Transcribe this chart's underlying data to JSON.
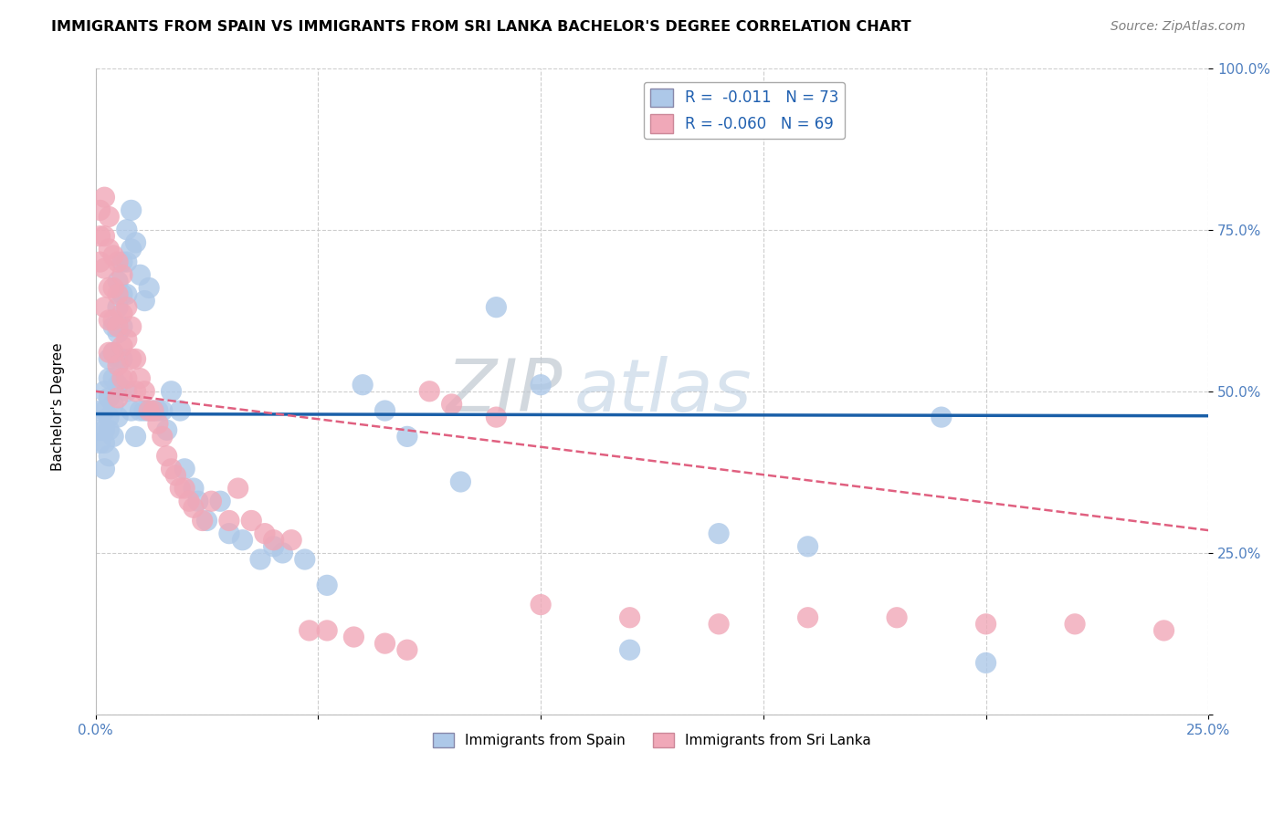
{
  "title": "IMMIGRANTS FROM SPAIN VS IMMIGRANTS FROM SRI LANKA BACHELOR'S DEGREE CORRELATION CHART",
  "source": "Source: ZipAtlas.com",
  "ylabel": "Bachelor's Degree",
  "xlim": [
    0.0,
    0.25
  ],
  "ylim": [
    0.0,
    1.0
  ],
  "x_ticks": [
    0.0,
    0.05,
    0.1,
    0.15,
    0.2,
    0.25
  ],
  "x_tick_labels": [
    "0.0%",
    "",
    "",
    "",
    "",
    "25.0%"
  ],
  "y_ticks": [
    0.0,
    0.25,
    0.5,
    0.75,
    1.0
  ],
  "y_tick_labels": [
    "",
    "25.0%",
    "50.0%",
    "75.0%",
    "100.0%"
  ],
  "spain_R": -0.011,
  "spain_N": 73,
  "srilanka_R": -0.06,
  "srilanka_N": 69,
  "spain_color": "#adc8e8",
  "srilanka_color": "#f0a8b8",
  "spain_line_color": "#1a5fa8",
  "srilanka_line_color": "#e06080",
  "watermark_zip": "ZIP",
  "watermark_atlas": "atlas",
  "spain_x": [
    0.001,
    0.001,
    0.001,
    0.002,
    0.002,
    0.002,
    0.002,
    0.002,
    0.003,
    0.003,
    0.003,
    0.003,
    0.003,
    0.003,
    0.004,
    0.004,
    0.004,
    0.004,
    0.004,
    0.005,
    0.005,
    0.005,
    0.005,
    0.005,
    0.005,
    0.006,
    0.006,
    0.006,
    0.006,
    0.007,
    0.007,
    0.007,
    0.007,
    0.008,
    0.008,
    0.008,
    0.009,
    0.009,
    0.01,
    0.01,
    0.011,
    0.011,
    0.012,
    0.012,
    0.013,
    0.014,
    0.015,
    0.016,
    0.017,
    0.019,
    0.02,
    0.022,
    0.023,
    0.025,
    0.028,
    0.03,
    0.033,
    0.037,
    0.04,
    0.042,
    0.047,
    0.052,
    0.06,
    0.065,
    0.07,
    0.082,
    0.09,
    0.1,
    0.12,
    0.14,
    0.16,
    0.19,
    0.2
  ],
  "spain_y": [
    0.47,
    0.44,
    0.42,
    0.5,
    0.47,
    0.44,
    0.42,
    0.38,
    0.55,
    0.52,
    0.49,
    0.46,
    0.44,
    0.4,
    0.6,
    0.56,
    0.52,
    0.48,
    0.43,
    0.67,
    0.63,
    0.59,
    0.55,
    0.51,
    0.46,
    0.7,
    0.65,
    0.6,
    0.55,
    0.75,
    0.7,
    0.65,
    0.5,
    0.78,
    0.72,
    0.47,
    0.73,
    0.43,
    0.68,
    0.47,
    0.64,
    0.47,
    0.66,
    0.47,
    0.47,
    0.47,
    0.47,
    0.44,
    0.5,
    0.47,
    0.38,
    0.35,
    0.33,
    0.3,
    0.33,
    0.28,
    0.27,
    0.24,
    0.26,
    0.25,
    0.24,
    0.2,
    0.51,
    0.47,
    0.43,
    0.36,
    0.63,
    0.51,
    0.1,
    0.28,
    0.26,
    0.46,
    0.08
  ],
  "srilanka_x": [
    0.001,
    0.001,
    0.001,
    0.002,
    0.002,
    0.002,
    0.002,
    0.003,
    0.003,
    0.003,
    0.003,
    0.003,
    0.004,
    0.004,
    0.004,
    0.004,
    0.005,
    0.005,
    0.005,
    0.005,
    0.005,
    0.006,
    0.006,
    0.006,
    0.006,
    0.007,
    0.007,
    0.007,
    0.008,
    0.008,
    0.009,
    0.009,
    0.01,
    0.011,
    0.012,
    0.013,
    0.014,
    0.015,
    0.016,
    0.017,
    0.018,
    0.019,
    0.02,
    0.021,
    0.022,
    0.024,
    0.026,
    0.03,
    0.032,
    0.035,
    0.038,
    0.04,
    0.044,
    0.048,
    0.052,
    0.058,
    0.065,
    0.07,
    0.075,
    0.08,
    0.09,
    0.1,
    0.12,
    0.14,
    0.16,
    0.18,
    0.2,
    0.22,
    0.24
  ],
  "srilanka_y": [
    0.78,
    0.74,
    0.7,
    0.8,
    0.74,
    0.69,
    0.63,
    0.77,
    0.72,
    0.66,
    0.61,
    0.56,
    0.71,
    0.66,
    0.61,
    0.56,
    0.7,
    0.65,
    0.6,
    0.54,
    0.49,
    0.68,
    0.62,
    0.57,
    0.52,
    0.63,
    0.58,
    0.52,
    0.6,
    0.55,
    0.55,
    0.5,
    0.52,
    0.5,
    0.47,
    0.47,
    0.45,
    0.43,
    0.4,
    0.38,
    0.37,
    0.35,
    0.35,
    0.33,
    0.32,
    0.3,
    0.33,
    0.3,
    0.35,
    0.3,
    0.28,
    0.27,
    0.27,
    0.13,
    0.13,
    0.12,
    0.11,
    0.1,
    0.5,
    0.48,
    0.46,
    0.17,
    0.15,
    0.14,
    0.15,
    0.15,
    0.14,
    0.14,
    0.13
  ],
  "spain_line_x0": 0.0,
  "spain_line_x1": 0.25,
  "spain_line_y0": 0.465,
  "spain_line_y1": 0.462,
  "srilanka_line_x0": 0.0,
  "srilanka_line_x1": 0.25,
  "srilanka_line_y0": 0.5,
  "srilanka_line_y1": 0.285
}
